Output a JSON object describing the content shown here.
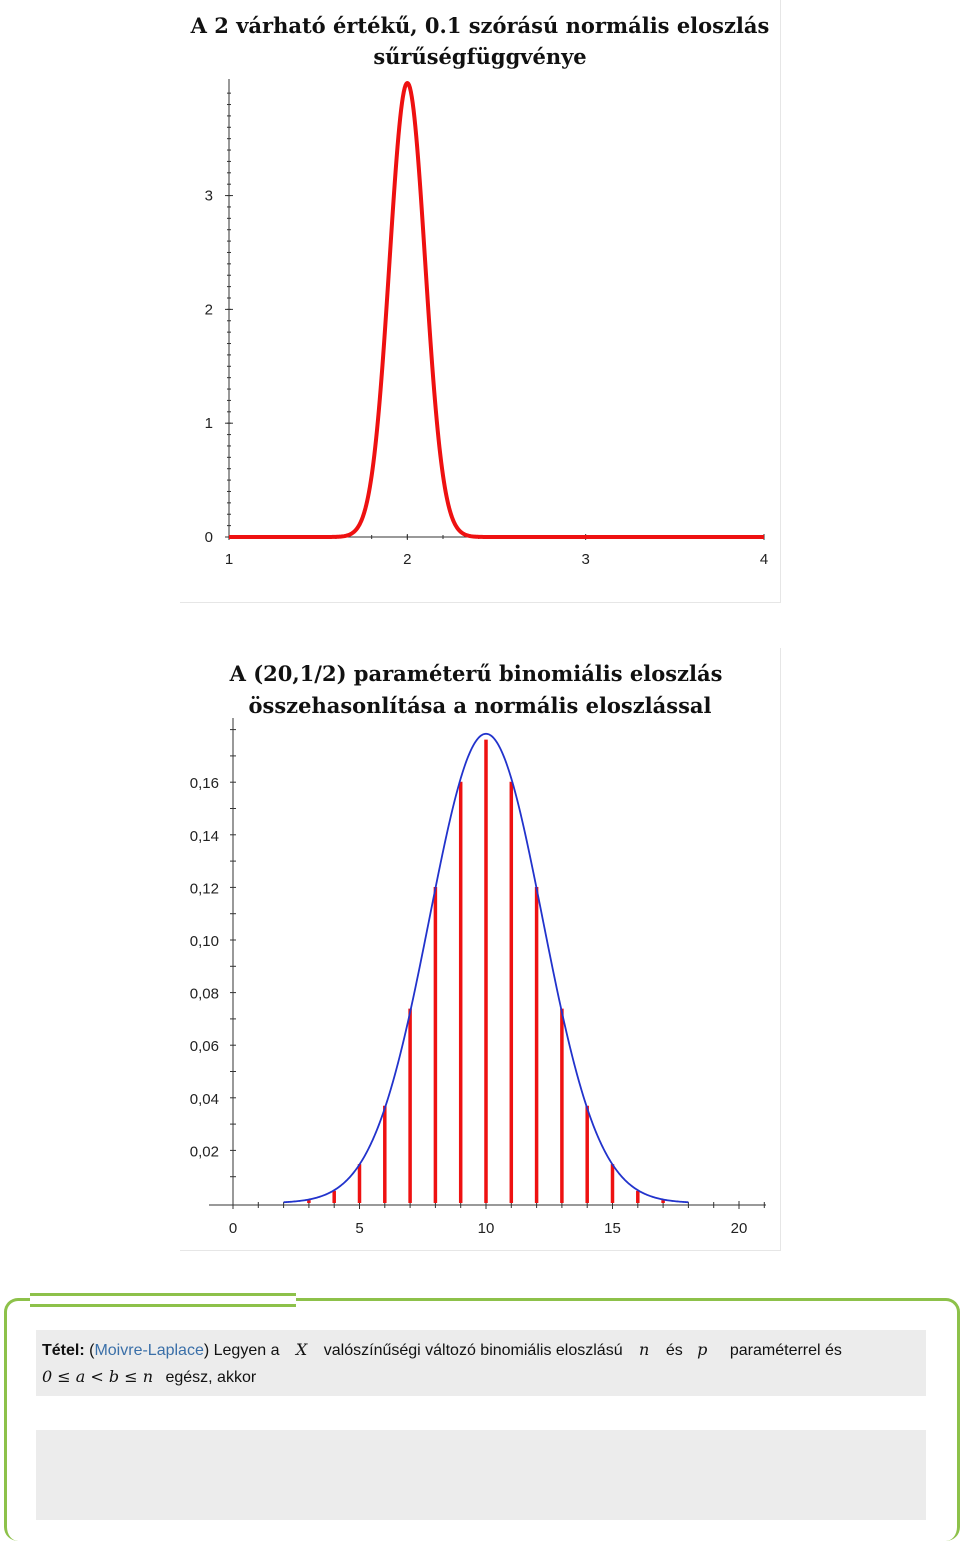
{
  "chart_data": [
    {
      "type": "line",
      "title_lines": [
        "A 2 várható értékű, 0.1 szórású normális eloszlás",
        "sűrűségfüggvénye"
      ],
      "function": {
        "kind": "normal_pdf",
        "mean": 2,
        "sd": 0.1
      },
      "x_ticks": [
        "1",
        "2",
        "3",
        "4"
      ],
      "y_ticks": [
        "0",
        "1",
        "2",
        "3"
      ],
      "xlim": [
        1,
        4
      ],
      "ylim": [
        0,
        4.2
      ],
      "color": "#ee1111"
    },
    {
      "type": "bar",
      "title_lines": [
        "A (20,1/2) paraméterű binomiális eloszlás",
        "összehasonlítása a normális eloszlással"
      ],
      "categories": [
        0,
        1,
        2,
        3,
        4,
        5,
        6,
        7,
        8,
        9,
        10,
        11,
        12,
        13,
        14,
        15,
        16,
        17,
        18,
        19,
        20
      ],
      "values": [
        1e-06,
        1.9e-05,
        0.000181,
        0.001087,
        0.004621,
        0.014786,
        0.036964,
        0.073929,
        0.120134,
        0.160179,
        0.176197,
        0.160179,
        0.120134,
        0.073929,
        0.036964,
        0.014786,
        0.004621,
        0.001087,
        0.000181,
        1.9e-05,
        1e-06
      ],
      "overlay": {
        "kind": "normal_pdf",
        "mean": 10,
        "sd": 2.2360679775
      },
      "x_ticks": [
        "0",
        "5",
        "10",
        "15",
        "20"
      ],
      "y_ticks": [
        "0,02",
        "0,04",
        "0,06",
        "0,08",
        "0,10",
        "0,12",
        "0,14",
        "0,16"
      ],
      "xlim": [
        0,
        21
      ],
      "ylim": [
        0,
        0.18
      ],
      "bar_color": "#ee1111",
      "curve_color": "#2233cc"
    }
  ],
  "theorem": {
    "label": "Tétel:",
    "paren_open": "(",
    "name": "Moivre-Laplace",
    "paren_close": ")",
    "text1": "Legyen a",
    "var_x": "X",
    "text2": "valószínűségi változó binomiális eloszlású",
    "var_n": "n",
    "text3": "és",
    "var_p": "p",
    "text4": "paraméterrel és",
    "condition": "0 ≤ a < b ≤ n",
    "text5": "egész, akkor"
  },
  "colors": {
    "accent": "#8dc14a",
    "link": "#3a6fa8"
  }
}
